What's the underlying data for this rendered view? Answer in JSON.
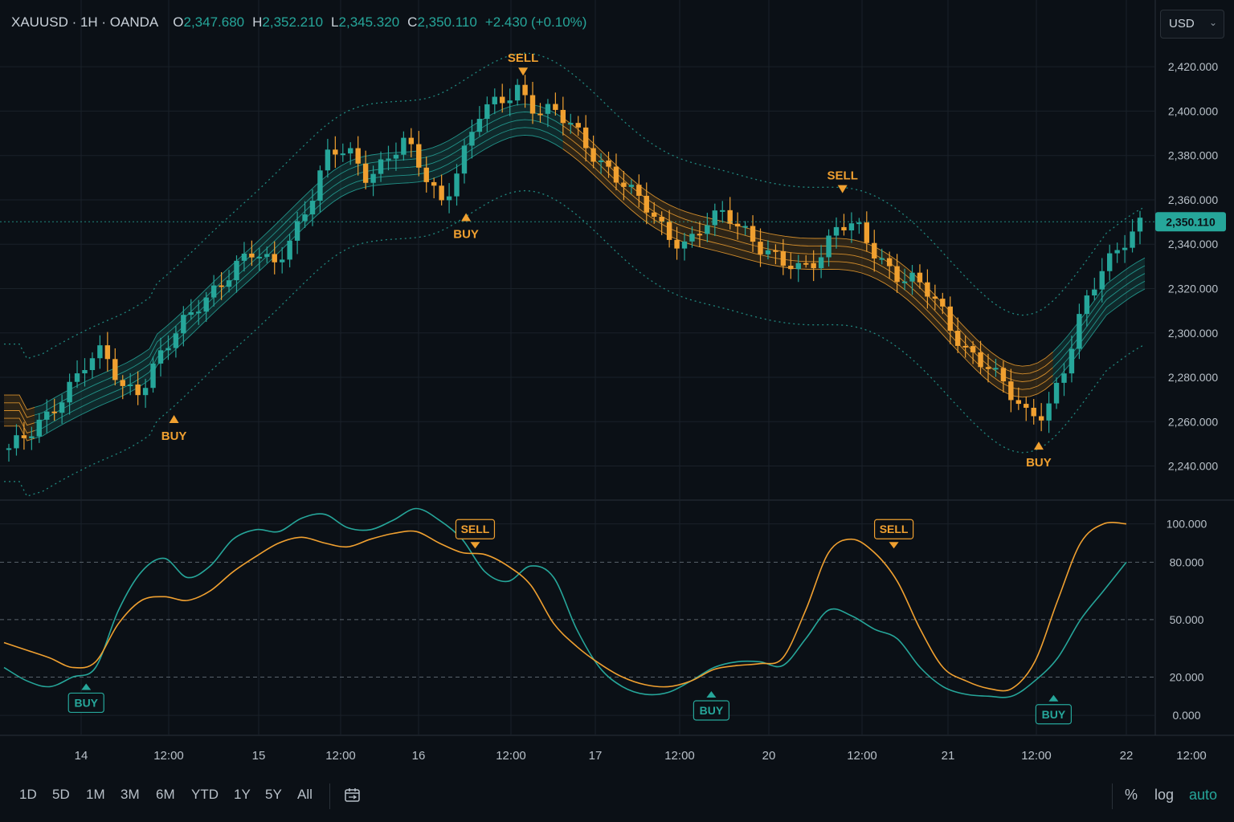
{
  "header": {
    "symbol": "XAUUSD · 1H · OANDA",
    "open_label": "O",
    "open": "2,347.680",
    "high_label": "H",
    "high": "2,352.210",
    "low_label": "L",
    "low": "2,345.320",
    "close_label": "C",
    "close": "2,350.110",
    "change": "+2.430 (+0.10%)"
  },
  "currency_selector": {
    "value": "USD",
    "icon": "chevron-down-icon"
  },
  "colors": {
    "background": "#0b1016",
    "bull": "#26a69a",
    "bear": "#f0a030",
    "signal_sell": "#f0a030",
    "grid": "#1a2129"
  },
  "chart_data": [
    {
      "type": "candlestick",
      "title": "XAUUSD · 1H · OANDA",
      "ylim": [
        2225,
        2432
      ],
      "yticks": [
        "2,420.000",
        "2,400.000",
        "2,380.000",
        "2,360.000",
        "2,340.000",
        "2,320.000",
        "2,300.000",
        "2,280.000",
        "2,260.000",
        "2,240.000"
      ],
      "last_price_label": "2,350.110",
      "last_price": 2350.11,
      "x_ticks": [
        "14",
        "12:00",
        "15",
        "12:00",
        "16",
        "12:00",
        "17",
        "12:00",
        "20",
        "12:00",
        "21",
        "12:00",
        "22",
        "12:00"
      ],
      "trend_path": [
        2248,
        2252,
        2262,
        2275,
        2286,
        2290,
        2275,
        2276,
        2290,
        2300,
        2312,
        2322,
        2330,
        2335,
        2330,
        2345,
        2360,
        2380,
        2382,
        2372,
        2378,
        2385,
        2372,
        2360,
        2378,
        2398,
        2404,
        2412,
        2400,
        2398,
        2392,
        2382,
        2372,
        2362,
        2355,
        2345,
        2340,
        2348,
        2354,
        2348,
        2338,
        2330,
        2328,
        2336,
        2350,
        2346,
        2334,
        2328,
        2325,
        2315,
        2300,
        2292,
        2286,
        2272,
        2262,
        2266,
        2285,
        2310,
        2328,
        2342,
        2350
      ],
      "signals": [
        {
          "type": "BUY",
          "x_frac": 0.149,
          "price": 2263
        },
        {
          "type": "BUY",
          "x_frac": 0.405,
          "price": 2354
        },
        {
          "type": "SELL",
          "x_frac": 0.455,
          "price": 2416
        },
        {
          "type": "SELL",
          "x_frac": 0.735,
          "price": 2363
        },
        {
          "type": "BUY",
          "x_frac": 0.907,
          "price": 2251
        }
      ],
      "band_start_value": 2265,
      "band_end_value": 2307
    },
    {
      "type": "line",
      "title": "",
      "ylim": [
        -10,
        112
      ],
      "yticks": [
        "100.000",
        "80.000",
        "50.000",
        "20.000",
        "0.000"
      ],
      "reference_lines": [
        80,
        50,
        20
      ],
      "series": [
        {
          "color": "#26a69a",
          "values": [
            25,
            18,
            15,
            20,
            25,
            55,
            75,
            82,
            72,
            78,
            92,
            97,
            96,
            103,
            105,
            98,
            97,
            102,
            108,
            102,
            92,
            75,
            70,
            78,
            72,
            45,
            25,
            15,
            11,
            12,
            18,
            25,
            28,
            28,
            26,
            40,
            55,
            52,
            45,
            40,
            25,
            15,
            11,
            10,
            10,
            18,
            30,
            50,
            65,
            80
          ]
        },
        {
          "color": "#f0a030",
          "values": [
            38,
            34,
            30,
            25,
            28,
            48,
            60,
            62,
            60,
            65,
            75,
            83,
            90,
            93,
            90,
            88,
            92,
            95,
            96,
            90,
            85,
            84,
            78,
            68,
            48,
            36,
            27,
            20,
            16,
            15,
            18,
            24,
            26,
            27,
            30,
            55,
            85,
            92,
            85,
            70,
            45,
            25,
            18,
            14,
            14,
            28,
            60,
            90,
            100,
            100
          ]
        }
      ],
      "signals": [
        {
          "type": "BUY",
          "x_frac": 0.072,
          "value": 20
        },
        {
          "type": "SELL",
          "x_frac": 0.413,
          "value": 88
        },
        {
          "type": "BUY",
          "x_frac": 0.62,
          "value": 16
        },
        {
          "type": "SELL",
          "x_frac": 0.78,
          "value": 88
        },
        {
          "type": "BUY",
          "x_frac": 0.92,
          "value": 14
        }
      ]
    }
  ],
  "signal_labels": {
    "buy": "BUY",
    "sell": "SELL"
  },
  "timeframes": [
    "1D",
    "5D",
    "1M",
    "3M",
    "6M",
    "YTD",
    "1Y",
    "5Y",
    "All"
  ],
  "right_controls": {
    "percent": "%",
    "log": "log",
    "auto": "auto"
  }
}
